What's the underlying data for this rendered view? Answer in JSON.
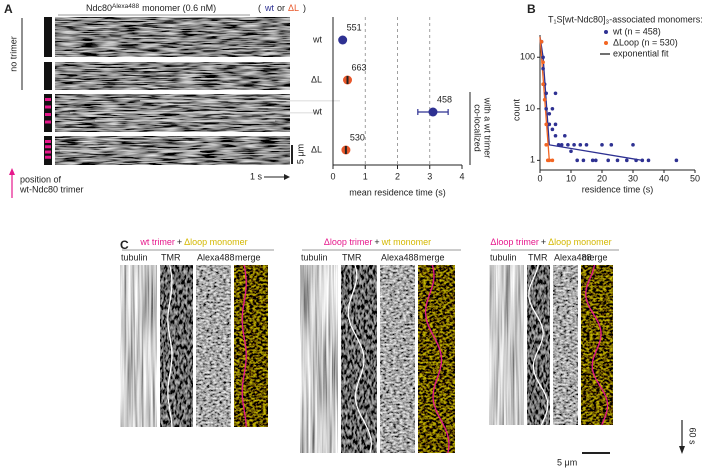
{
  "panel_labels": [
    "A",
    "B",
    "C"
  ],
  "panel_a": {
    "header": {
      "name": "Ndc80",
      "superscript": "Alexa488",
      "rest": "monomer (0.6 nM)",
      "open": "(",
      "wt": "wt",
      "or": "or",
      "dl": "ΔL",
      "close": ")"
    },
    "no_trimer": "no trimer",
    "position": [
      "position of",
      "wt-Ndc80 trimer"
    ],
    "scale_y": "5 μm",
    "scale_x": "1 s"
  },
  "chart_data": [
    {
      "type": "dot",
      "categories": [
        "wt",
        "ΔL",
        "wt",
        "ΔL"
      ],
      "colors": [
        "#2e3192",
        "#e8572a",
        "#2e3192",
        "#e8572a"
      ],
      "values": [
        0.3,
        0.45,
        3.1,
        0.4
      ],
      "errors": [
        0.03,
        0.04,
        0.47,
        0.04
      ],
      "n_labels": [
        551,
        663,
        458,
        530
      ],
      "xlim": [
        0,
        4
      ],
      "xticks": [
        0,
        1,
        2,
        3,
        4
      ],
      "grid": true,
      "xlabel": "mean residence time (s)",
      "group_label": [
        "co-localized",
        "with a wt trimer"
      ]
    },
    {
      "type": "scatter",
      "title": "T₁S[wt-Ndc80]₃-associated monomers:",
      "series": [
        {
          "name": "wt (n = 458)",
          "color": "#2e3192",
          "x": [
            0.5,
            1,
            1,
            1.5,
            2,
            2,
            3,
            3,
            4,
            4,
            5,
            5,
            5,
            6,
            7,
            8,
            9,
            10,
            11,
            12,
            13,
            14,
            15,
            17,
            18,
            20,
            22,
            23,
            25,
            28,
            30,
            31,
            33,
            35,
            44
          ],
          "values": [
            200,
            100,
            60,
            30,
            20,
            10,
            8,
            5,
            10,
            4,
            3,
            5,
            20,
            2,
            2,
            3,
            2,
            1.5,
            2,
            1,
            2,
            1,
            2,
            1,
            1,
            2,
            1,
            2,
            1,
            1,
            2,
            1,
            1,
            1,
            1
          ]
        },
        {
          "name": "ΔLoop (n = 530)",
          "color": "#f26522",
          "x": [
            0.5,
            1,
            1,
            1.5,
            2,
            2,
            2.5,
            3,
            4
          ],
          "values": [
            200,
            80,
            30,
            15,
            5,
            2,
            1,
            1,
            1
          ]
        }
      ],
      "fit_label": "exponential fit",
      "fits": [
        {
          "color": "#2e3192",
          "x": [
            0,
            1,
            3,
            33
          ],
          "values": [
            250,
            100,
            2,
            1
          ]
        },
        {
          "color": "#f26522",
          "x": [
            0,
            3
          ],
          "values": [
            250,
            1
          ]
        }
      ],
      "log_y": true,
      "xlim": [
        0,
        50
      ],
      "xticks": [
        0,
        10,
        20,
        30,
        40,
        50
      ],
      "ylim": [
        0.65,
        270
      ],
      "yticks": [
        1,
        10,
        100
      ],
      "xlabel": "residence time (s)",
      "ylabel": "count"
    }
  ],
  "panel_c": {
    "groups": [
      {
        "parts": [
          "wt trimer",
          "+",
          "Δloop monomer"
        ],
        "columns": [
          "tubulin",
          "TMR",
          "Alexa488",
          "merge"
        ]
      },
      {
        "parts": [
          "Δloop trimer",
          "+",
          "wt monomer"
        ],
        "columns": [
          "tubulin",
          "TMR",
          "Alexa488",
          "merge"
        ]
      },
      {
        "parts": [
          "Δloop trimer",
          "+",
          "Δloop monomer"
        ],
        "columns": [
          "tubulin",
          "TMR",
          "Alexa488",
          "merge"
        ]
      }
    ],
    "time_scale": "60 s",
    "space_scale": "5 μm"
  }
}
